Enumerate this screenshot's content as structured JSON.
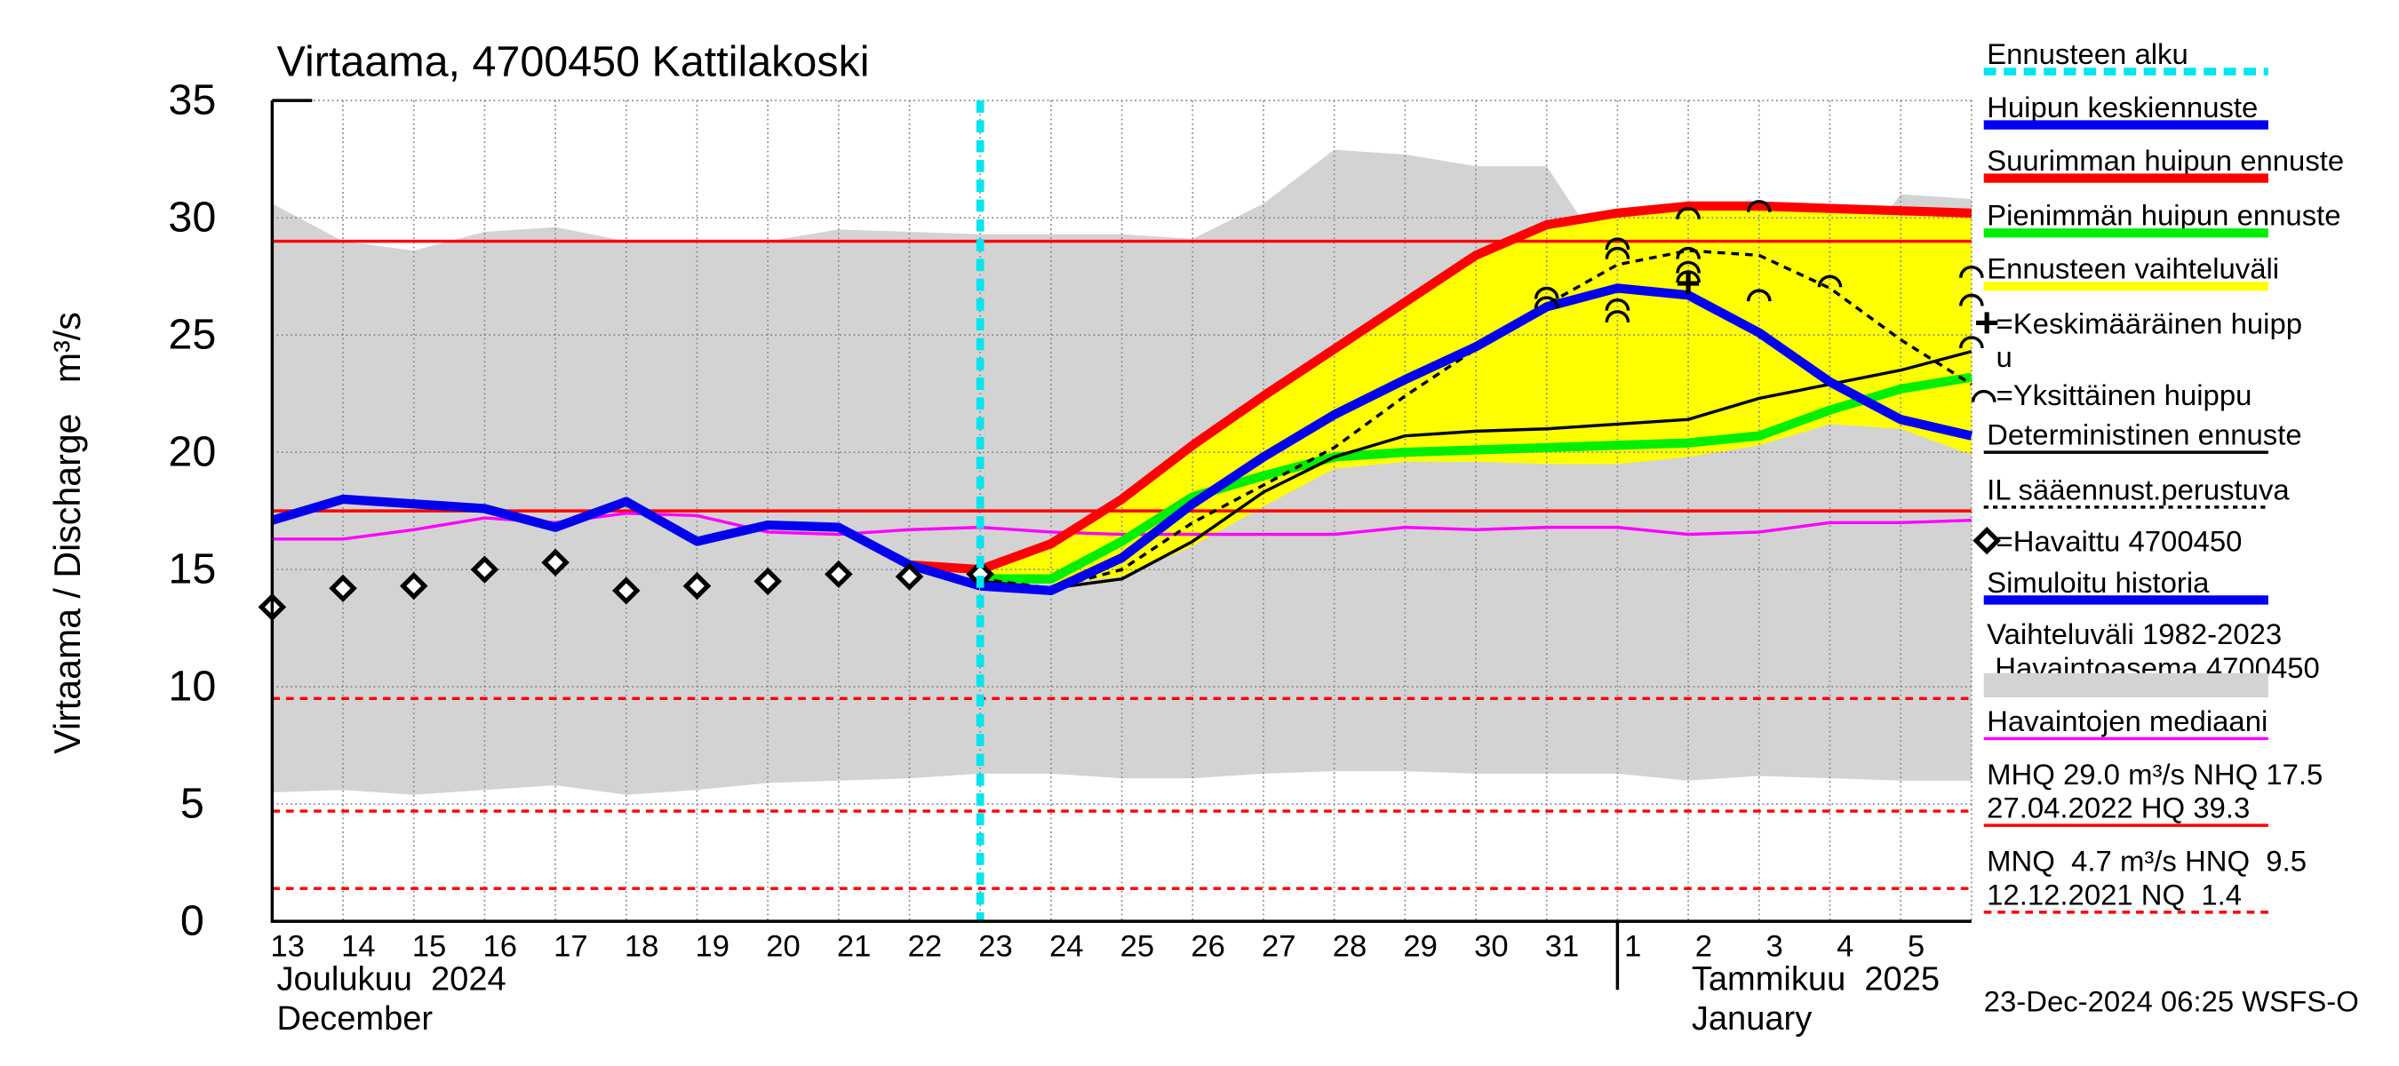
{
  "chart_data": {
    "type": "line",
    "title": "Virtaama, 4700450 Kattilakoski",
    "y_label": "Virtaama / Discharge   m³/s",
    "categories": [
      "13",
      "14",
      "15",
      "16",
      "17",
      "18",
      "19",
      "20",
      "21",
      "22",
      "23",
      "24",
      "25",
      "26",
      "27",
      "28",
      "29",
      "30",
      "31",
      "1",
      "2",
      "3",
      "4",
      "5",
      null
    ],
    "months": [
      [
        "Joulukuu  2024",
        "December"
      ],
      [
        "Tammikuu  2025",
        "January"
      ]
    ],
    "timestamp": "23-Dec-2024 06:25 WSFS-O",
    "ylim": [
      0,
      35
    ],
    "yticks": [
      0,
      5,
      10,
      15,
      20,
      25,
      30,
      35
    ],
    "grid": true,
    "forecast_start": 10,
    "series": [
      {
        "kind": "band",
        "color": "#d3d3d3",
        "lower": [
          5.5,
          5.6,
          5.4,
          5.6,
          5.8,
          5.4,
          5.6,
          5.9,
          6.0,
          6.1,
          6.3,
          6.3,
          6.1,
          6.1,
          6.3,
          6.4,
          6.4,
          6.3,
          6.3,
          6.3,
          6.0,
          6.2,
          6.1,
          6.0,
          6.0
        ],
        "upper": [
          30.6,
          29.0,
          28.6,
          29.4,
          29.6,
          29.0,
          29.0,
          29.0,
          29.5,
          29.4,
          29.3,
          29.3,
          29.3,
          29.1,
          30.6,
          32.9,
          32.7,
          32.2,
          32.2,
          27.6,
          28.5,
          27.0,
          27.0,
          31.0,
          30.8
        ]
      },
      {
        "kind": "band",
        "color": "#ffff00",
        "lower": [
          null,
          null,
          null,
          null,
          null,
          null,
          null,
          null,
          null,
          null,
          14.5,
          14.4,
          14.7,
          16.0,
          17.7,
          19.3,
          19.6,
          19.6,
          19.5,
          19.5,
          19.8,
          20.3,
          21.2,
          21.0,
          19.9
        ],
        "upper": [
          null,
          null,
          null,
          null,
          null,
          null,
          null,
          null,
          null,
          null,
          15.0,
          16.1,
          18.0,
          20.3,
          22.4,
          24.4,
          26.4,
          28.4,
          29.7,
          30.2,
          30.5,
          30.5,
          30.4,
          30.3,
          30.2
        ]
      },
      {
        "kind": "line",
        "color": "#ff00ff",
        "width": 2,
        "values": [
          16.3,
          16.3,
          16.7,
          17.2,
          17.0,
          17.4,
          17.3,
          16.6,
          16.5,
          16.7,
          16.8,
          16.6,
          16.5,
          16.5,
          16.5,
          16.5,
          16.8,
          16.7,
          16.8,
          16.8,
          16.5,
          16.6,
          17.0,
          17.0,
          17.1
        ]
      },
      {
        "kind": "line",
        "color": "#ff0000",
        "width": 6,
        "values": [
          null,
          null,
          null,
          null,
          null,
          null,
          null,
          null,
          null,
          15.2,
          15.0,
          16.1,
          18.0,
          20.3,
          22.4,
          24.4,
          26.4,
          28.4,
          29.7,
          30.2,
          30.5,
          30.5,
          30.4,
          30.3,
          30.2
        ]
      },
      {
        "kind": "line",
        "color": "#00ee00",
        "width": 6,
        "values": [
          null,
          null,
          null,
          null,
          null,
          null,
          null,
          null,
          null,
          null,
          14.6,
          14.6,
          16.2,
          18.1,
          19.0,
          19.8,
          20.0,
          20.1,
          20.2,
          20.3,
          20.4,
          20.7,
          21.8,
          22.7,
          23.2
        ]
      },
      {
        "kind": "line",
        "color": "#000000",
        "width": 2,
        "values": [
          null,
          null,
          null,
          null,
          null,
          null,
          null,
          null,
          null,
          null,
          14.5,
          14.2,
          14.6,
          16.2,
          18.3,
          19.8,
          20.7,
          20.9,
          21.0,
          21.2,
          21.4,
          22.3,
          22.9,
          23.5,
          24.3
        ]
      },
      {
        "kind": "line",
        "color": "#000000",
        "width": 2,
        "dash": "5,4",
        "values": [
          null,
          null,
          null,
          null,
          null,
          null,
          null,
          null,
          null,
          null,
          14.6,
          14.2,
          15.0,
          17.0,
          18.6,
          20.2,
          22.4,
          24.4,
          26.3,
          28.0,
          28.6,
          28.4,
          27.0,
          24.8,
          22.9
        ]
      },
      {
        "kind": "line",
        "color": "#0000ee",
        "width": 6,
        "values": [
          17.1,
          18.0,
          17.8,
          17.6,
          16.8,
          17.9,
          16.2,
          16.9,
          16.8,
          15.2,
          14.3,
          null,
          null,
          null,
          null,
          null,
          null,
          null,
          null,
          null,
          null,
          null,
          null,
          null,
          null
        ]
      },
      {
        "kind": "line",
        "color": "#0000ee",
        "width": 6,
        "values": [
          null,
          null,
          null,
          null,
          null,
          null,
          null,
          null,
          null,
          null,
          14.3,
          14.1,
          15.5,
          17.8,
          19.8,
          21.6,
          23.1,
          24.5,
          26.2,
          27.0,
          26.7,
          25.1,
          23.0,
          21.4,
          20.7
        ]
      },
      {
        "kind": "marker",
        "color": "#000000",
        "values": [
          13.4,
          14.2,
          14.3,
          15.0,
          15.3,
          14.1,
          14.3,
          14.5,
          14.8,
          14.7,
          14.8,
          null,
          null,
          null,
          null,
          null,
          null,
          null,
          null,
          null,
          null,
          null,
          null,
          null,
          null
        ]
      }
    ],
    "reference_lines": [
      {
        "value": 29.0,
        "dashed": false
      },
      {
        "value": 17.5,
        "dashed": false
      },
      {
        "value": 9.5,
        "dashed": true
      },
      {
        "value": 4.7,
        "dashed": true
      },
      {
        "value": 1.4,
        "dashed": true
      }
    ],
    "mean_peak": {
      "x": 20,
      "y": 27.2
    },
    "single_peaks": {
      "x": [
        18,
        18,
        19,
        19,
        19,
        19,
        20,
        20,
        20,
        20,
        21,
        21,
        22,
        24,
        24,
        24
      ],
      "y": [
        26.4,
        26.8,
        25.8,
        26.3,
        28.5,
        28.9,
        27.5,
        27.9,
        28.5,
        30.2,
        26.7,
        30.5,
        27.3,
        26.5,
        27.7,
        24.7
      ]
    },
    "legend": [
      {
        "lines": [
          "Ennusteen alku"
        ],
        "color": "#00e5ee",
        "style": "dash"
      },
      {
        "lines": [
          "Huipun keskiennuste"
        ],
        "color": "#0000ee",
        "style": "solid"
      },
      {
        "lines": [
          "Suurimman huipun ennuste"
        ],
        "color": "#ff0000",
        "style": "solid"
      },
      {
        "lines": [
          "Pienimmän huipun ennuste"
        ],
        "color": "#00ee00",
        "style": "solid"
      },
      {
        "lines": [
          "Ennusteen vaihteluväli"
        ],
        "color": "#ffff00",
        "style": "solid"
      },
      {
        "lines": [
          "=Keskimääräinen huipp",
          "u"
        ],
        "color": "#000000",
        "style": "none"
      },
      {
        "lines": [
          "=Yksittäinen huippu"
        ],
        "color": "#000000",
        "style": "none"
      },
      {
        "lines": [
          "Deterministinen ennuste"
        ],
        "color": "#000000",
        "style": "thin"
      },
      {
        "lines": [
          "IL sääennust.perustuva"
        ],
        "color": "#000000",
        "style": "dot"
      },
      {
        "lines": [
          "=Havaittu 4700450"
        ],
        "color": "#000000",
        "style": "none"
      },
      {
        "lines": [
          "Simuloitu historia"
        ],
        "color": "#0000ee",
        "style": "solid"
      },
      {
        "lines": [
          "Vaihteluväli 1982-2023",
          " Havaintoasema 4700450"
        ],
        "color": "#d3d3d3",
        "style": "solid"
      },
      {
        "lines": [
          "Havaintojen mediaani"
        ],
        "color": "#ff00ff",
        "style": "thin"
      },
      {
        "lines": [
          "MHQ 29.0 m³/s NHQ 17.5",
          "27.04.2022 HQ 39.3"
        ],
        "color": "#ff0000",
        "style": "thin"
      },
      {
        "lines": [
          "MNQ  4.7 m³/s HNQ  9.5",
          "12.12.2021 NQ  1.4"
        ],
        "color": "#ff0000",
        "style": "reddash"
      }
    ]
  }
}
